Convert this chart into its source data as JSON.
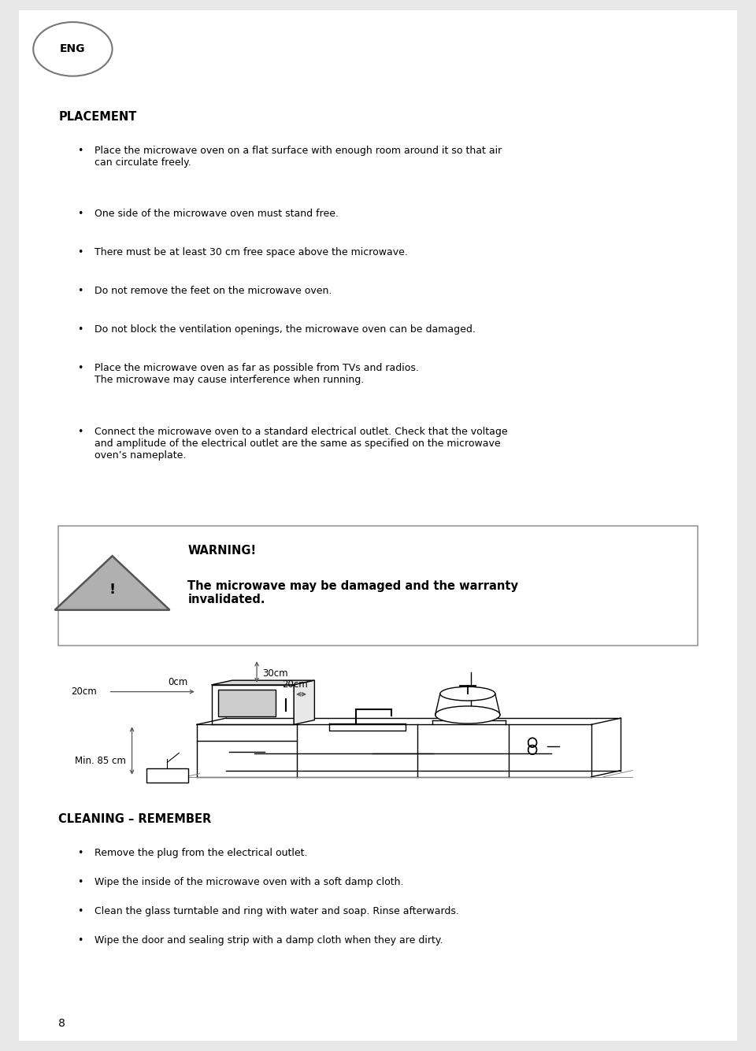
{
  "bg_color": "#e8e8e8",
  "page_bg": "#ffffff",
  "eng_label": "ENG",
  "section1_title": "PLACEMENT",
  "bullets": [
    "Place the microwave oven on a flat surface with enough room around it so that air\ncan circulate freely.",
    "One side of the microwave oven must stand free.",
    "There must be at least 30 cm free space above the microwave.",
    "Do not remove the feet on the microwave oven.",
    "Do not block the ventilation openings, the microwave oven can be damaged.",
    "Place the microwave oven as far as possible from TVs and radios.\nThe microwave may cause interference when running.",
    "Connect the microwave oven to a standard electrical outlet. Check that the voltage\nand amplitude of the electrical outlet are the same as specified on the microwave\noven’s nameplate."
  ],
  "warning_title": "WARNING!",
  "warning_text": "The microwave may be damaged and the warranty\ninvalidated.",
  "section2_title": "CLEANING – REMEMBER",
  "bullets2": [
    "Remove the plug from the electrical outlet.",
    "Wipe the inside of the microwave oven with a soft damp cloth.",
    "Clean the glass turntable and ring with water and soap. Rinse afterwards.",
    "Wipe the door and sealing strip with a damp cloth when they are dirty."
  ],
  "page_number": "8",
  "label_0cm": "0cm",
  "label_30cm": "30cm",
  "label_20cm_side": "20cm",
  "label_20cm_top": "20cm",
  "label_min85": "Min. 85 cm"
}
